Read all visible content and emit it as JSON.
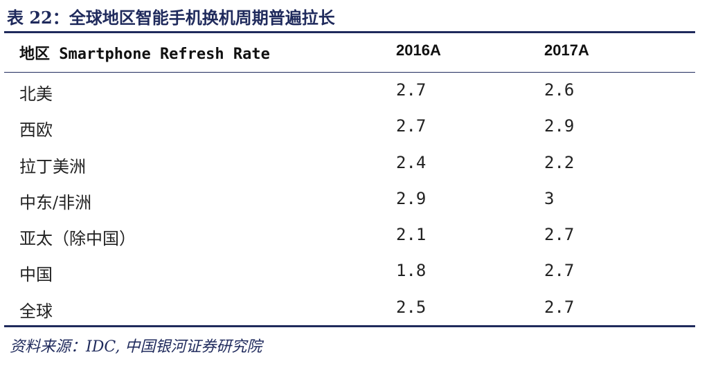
{
  "title": "表 22：全球地区智能手机换机周期普遍拉长",
  "table": {
    "headers": [
      "地区 Smartphone Refresh Rate",
      "2016A",
      "2017A"
    ],
    "rows": [
      [
        "北美",
        "2.7",
        "2.6"
      ],
      [
        "西欧",
        "2.7",
        "2.9"
      ],
      [
        "拉丁美洲",
        "2.4",
        "2.2"
      ],
      [
        "中东/非洲",
        "2.9",
        "3"
      ],
      [
        "亚太（除中国）",
        "2.1",
        "2.7"
      ],
      [
        "中国",
        "1.8",
        "2.7"
      ],
      [
        "全球",
        "2.5",
        "2.7"
      ]
    ]
  },
  "source": "资料来源：IDC, 中国银河证券研究院",
  "colors": {
    "accent": "#1f2a5c",
    "text": "#222222",
    "background": "#ffffff"
  }
}
